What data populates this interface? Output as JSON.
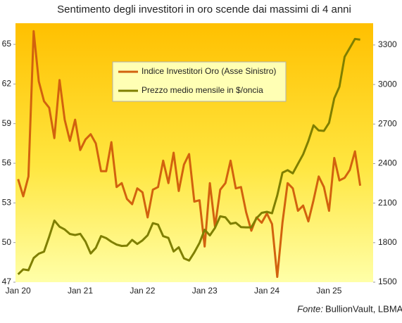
{
  "chart_data": {
    "type": "line",
    "title": "Sentimento degli investitori in oro scende dai massimi di 4 anni",
    "source_label": "Fonte:",
    "source": "BullionVault, LBMA",
    "categories": [
      "Jan 20",
      null,
      null,
      null,
      null,
      null,
      null,
      null,
      null,
      null,
      null,
      null,
      "Jan 21",
      null,
      null,
      null,
      null,
      null,
      null,
      null,
      null,
      null,
      null,
      null,
      "Jan 22",
      null,
      null,
      null,
      null,
      null,
      null,
      null,
      null,
      null,
      null,
      null,
      "Jan 23",
      null,
      null,
      null,
      null,
      null,
      null,
      null,
      null,
      null,
      null,
      null,
      "Jan 24",
      null,
      null,
      null,
      null,
      null,
      null,
      null,
      null,
      null,
      null,
      null,
      "Jan 25",
      null,
      null,
      null,
      null,
      null,
      null,
      null,
      null
    ],
    "series": [
      {
        "name": "Indice Investitori Oro (Asse Sinistro)",
        "color": "#d2620e",
        "values": [
          54.8,
          53.5,
          55,
          66,
          62.2,
          60.7,
          60.2,
          57.9,
          62.3,
          59.3,
          57.7,
          59.3,
          57,
          57.8,
          58.2,
          57.5,
          55.4,
          55.4,
          57.6,
          54.2,
          54.5,
          53.3,
          52.9,
          54.1,
          53.8,
          51.9,
          54,
          54.2,
          56.2,
          54.5,
          56.8,
          53.9,
          55.9,
          56.7,
          53.1,
          53.2,
          49.7,
          54.5,
          51.2,
          54,
          54.5,
          56.2,
          54.1,
          54.2,
          52.3,
          50.9,
          51.9,
          51.5,
          52.2,
          51.4,
          47.4,
          51.5,
          54.5,
          54.1,
          52.4,
          52.8,
          51.6,
          53.2,
          55,
          54.2,
          52.4,
          56.4,
          54.7,
          54.9,
          55.5,
          56.9,
          54.3,
          null,
          null
        ]
      },
      {
        "name": "Prezzo medio mensile in $/oncia",
        "color": "#7f7f00",
        "axis": "y2",
        "values": [
          1560,
          1597,
          1591,
          1683,
          1716,
          1732,
          1846,
          1968,
          1921,
          1900,
          1866,
          1858,
          1867,
          1808,
          1718,
          1760,
          1850,
          1834,
          1807,
          1785,
          1775,
          1777,
          1821,
          1790,
          1817,
          1856,
          1948,
          1937,
          1849,
          1836,
          1733,
          1765,
          1681,
          1664,
          1726,
          1798,
          1898,
          1855,
          1912,
          2000,
          1992,
          1943,
          1951,
          1918,
          1916,
          1916,
          1985,
          2026,
          2034,
          2023,
          2158,
          2331,
          2350,
          2326,
          2398,
          2470,
          2571,
          2690,
          2651,
          2648,
          2709,
          2895,
          2983,
          3210,
          3278,
          3346,
          3340,
          null,
          null
        ]
      }
    ],
    "ylim": [
      47,
      66.6
    ],
    "yticks": [
      47,
      50,
      53,
      56,
      59,
      62,
      65
    ],
    "y2lim": [
      1500,
      3465
    ],
    "y2ticks": [
      1500,
      1800,
      2100,
      2400,
      2700,
      3000,
      3300
    ],
    "grid": false
  }
}
